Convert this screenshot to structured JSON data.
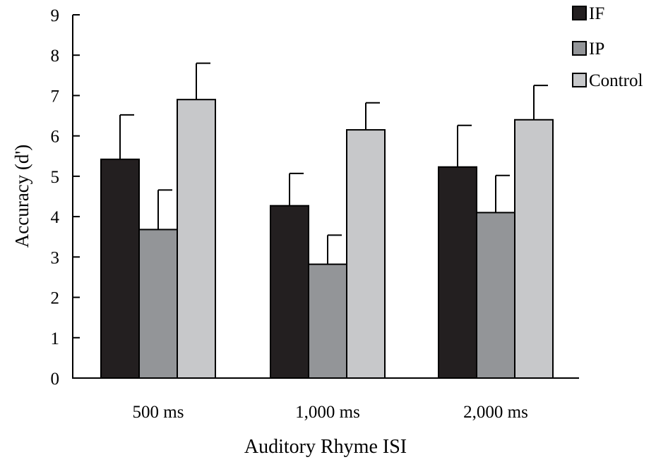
{
  "chart_data": {
    "type": "bar",
    "title": "",
    "xlabel": "Auditory Rhyme ISI",
    "ylabel": "Accuracy (d')",
    "categories": [
      "500 ms",
      "1,000 ms",
      "2,000 ms"
    ],
    "ylim": [
      0,
      9
    ],
    "yticks": [
      "0",
      "1",
      "2",
      "3",
      "4",
      "5",
      "6",
      "7",
      "8",
      "9"
    ],
    "grid": false,
    "legend_position": "top-right",
    "series": [
      {
        "name": "IF",
        "color": "#231f20",
        "values": [
          5.42,
          4.27,
          5.23
        ],
        "errors": [
          1.1,
          0.8,
          1.03
        ]
      },
      {
        "name": "IP",
        "color": "#939598",
        "values": [
          3.68,
          2.82,
          4.1
        ],
        "errors": [
          0.98,
          0.72,
          0.92
        ]
      },
      {
        "name": "Control",
        "color": "#c7c8ca",
        "values": [
          6.9,
          6.15,
          6.4
        ],
        "errors": [
          0.9,
          0.67,
          0.85
        ]
      }
    ]
  }
}
